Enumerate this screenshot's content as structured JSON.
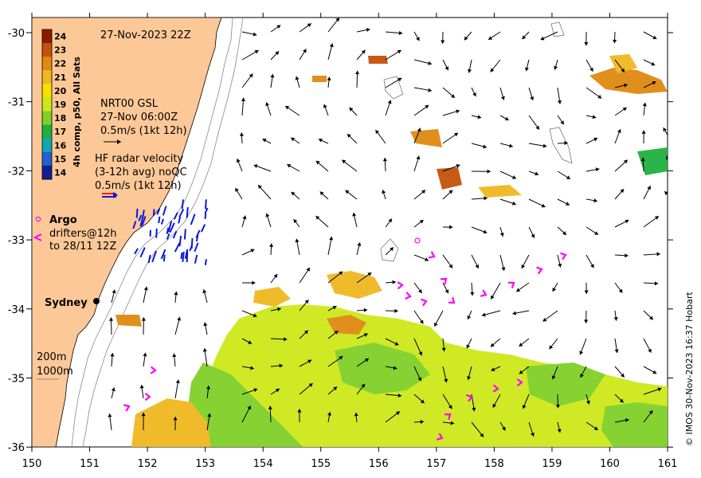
{
  "map": {
    "timestamp": "27-Nov-2023 22Z",
    "x_ticks": [
      "150",
      "151",
      "152",
      "153",
      "154",
      "155",
      "156",
      "157",
      "158",
      "159",
      "160",
      "161"
    ],
    "y_ticks": [
      "-30",
      "-31",
      "-32",
      "-33",
      "-34",
      "-35",
      "-36"
    ],
    "colorbar": {
      "title": "4h comp, p50, All Sats",
      "values": [
        "24",
        "23",
        "22",
        "21",
        "20",
        "19",
        "18",
        "17",
        "16",
        "15",
        "14"
      ],
      "colors": [
        "#8b1a00",
        "#c4520a",
        "#e08a10",
        "#f0b820",
        "#f5e000",
        "#cde81a",
        "#7fd028",
        "#20b040",
        "#10a8b0",
        "#2060d0",
        "#102090"
      ]
    },
    "gsl_legend": {
      "line1": "NRT00 GSL",
      "line2": "27-Nov 06:00Z",
      "line3": "0.5m/s (1kt 12h)"
    },
    "radar_legend": {
      "line1": "HF radar velocity",
      "line2": "(3-12h avg) noQC",
      "line3": "0.5m/s (1kt 12h)"
    },
    "argo_label": "Argo",
    "drifters_line1": "drifters@12h",
    "drifters_line2": "to 28/11 12Z",
    "city_label": "Sydney",
    "depth_200": "200m",
    "depth_1000": "1000m",
    "credit": "© IMOS 30-Nov-2023 16:37 Hobart",
    "colors": {
      "land": "#fdc897",
      "ocean": "#ffffff",
      "drifter": "#ff00ff",
      "radar": "#0a1ad8",
      "legend_red": "#e8201c"
    }
  }
}
